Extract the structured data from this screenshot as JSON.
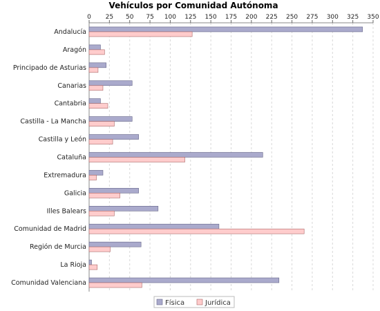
{
  "chart_data": {
    "type": "bar",
    "orientation": "horizontal",
    "title": "Vehículos por Comunidad Autónoma",
    "xlabel": "",
    "ylabel": "",
    "xlim": [
      0,
      350
    ],
    "ticks": [
      "0",
      "25",
      "50",
      "75",
      "100",
      "125",
      "150",
      "175",
      "200",
      "225",
      "250",
      "275",
      "300",
      "325",
      "350"
    ],
    "axis_position": "top",
    "grid": true,
    "legend_position": "bottom",
    "categories": [
      "Andalucía",
      "Aragón",
      "Principado de Asturias",
      "Canarias",
      "Cantabria",
      "Castilla - La Mancha",
      "Castilla y León",
      "Cataluña",
      "Extremadura",
      "Galicia",
      "Illes Balears",
      "Comunidad de Madrid",
      "Región de Murcia",
      "La Rioja",
      "Comunidad Valenciana"
    ],
    "series": [
      {
        "name": "Física",
        "color": "#aaaacc",
        "values": [
          337,
          14,
          21,
          53,
          14,
          53,
          61,
          214,
          17,
          61,
          85,
          160,
          64,
          3,
          234
        ]
      },
      {
        "name": "Jurídica",
        "color": "#ffcccc",
        "values": [
          127,
          19,
          11,
          17,
          23,
          31,
          29,
          118,
          9,
          38,
          31,
          265,
          26,
          10,
          65
        ]
      }
    ]
  }
}
